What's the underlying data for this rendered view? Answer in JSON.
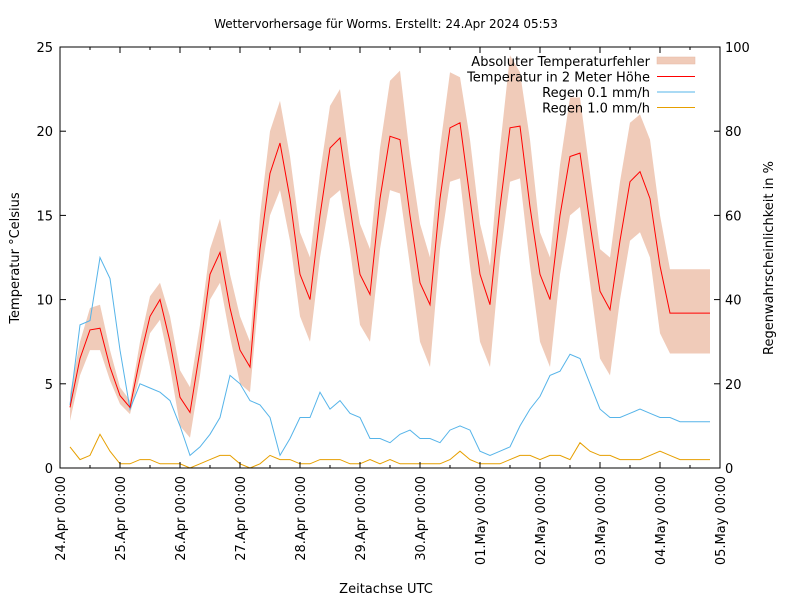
{
  "chart_data": {
    "type": "line",
    "title": "Wettervorhersage für Worms. Erstellt: 24.Apr 2024 05:53",
    "xlabel": "Zeitachse UTC",
    "ylabel": "Temperatur °Celsius",
    "y2label": "Regenwahrscheinlichkeit in %",
    "ylim": [
      0,
      25
    ],
    "y2lim": [
      0,
      100
    ],
    "yticks": [
      "0",
      "5",
      "10",
      "15",
      "20",
      "25"
    ],
    "y2ticks": [
      "0",
      "20",
      "40",
      "60",
      "80",
      "100"
    ],
    "xticks": [
      "24.Apr 00:00",
      "25.Apr 00:00",
      "26.Apr 00:00",
      "27.Apr 00:00",
      "28.Apr 00:00",
      "29.Apr 00:00",
      "30.Apr 00:00",
      "01.May 00:00",
      "02.May 00:00",
      "03.May 00:00",
      "04.May 00:00",
      "05.May 00:00"
    ],
    "xlim_days": [
      0,
      11
    ],
    "grid": false,
    "legend_position": "top-right",
    "legend": [
      {
        "label": "Absoluter Temperaturfehler",
        "kind": "band",
        "color": "#f0cbb9"
      },
      {
        "label": "Temperatur in 2 Meter Höhe",
        "kind": "line",
        "color": "#ff0000"
      },
      {
        "label": "Regen 0.1 mm/h",
        "kind": "line",
        "color": "#56b4e9"
      },
      {
        "label": "Regen 1.0 mm/h",
        "kind": "line",
        "color": "#e69f00"
      }
    ],
    "x_hours_from_start": [
      4,
      8,
      12,
      16,
      20,
      24,
      28,
      32,
      36,
      40,
      44,
      48,
      52,
      56,
      60,
      64,
      68,
      72,
      76,
      80,
      84,
      88,
      92,
      96,
      100,
      104,
      108,
      112,
      116,
      120,
      124,
      128,
      132,
      136,
      140,
      144,
      148,
      152,
      156,
      160,
      164,
      168,
      172,
      176,
      180,
      184,
      188,
      192,
      196,
      200,
      204,
      208,
      212,
      216,
      220,
      224,
      228,
      232,
      236,
      240,
      244,
      248,
      252,
      256,
      260
    ],
    "series": [
      {
        "name": "Temperatur in 2 Meter Höhe",
        "unit": "°C",
        "values": [
          3.6,
          6.5,
          8.2,
          8.3,
          6.0,
          4.3,
          3.6,
          6.5,
          9.0,
          10.0,
          7.5,
          4.2,
          3.3,
          7.0,
          11.5,
          12.8,
          9.5,
          7.0,
          6.0,
          13.0,
          17.5,
          19.3,
          16.0,
          11.5,
          10.0,
          15.0,
          19.0,
          19.6,
          15.5,
          11.5,
          10.3,
          16.0,
          19.7,
          19.5,
          15.0,
          11.0,
          9.7,
          16.0,
          20.2,
          20.5,
          16.0,
          11.5,
          9.7,
          15.5,
          20.2,
          20.3,
          15.5,
          11.5,
          10.0,
          15.0,
          18.5,
          18.7,
          14.5,
          10.5,
          9.4,
          13.5,
          17.0,
          17.6,
          16.0,
          12.0,
          9.2,
          9.2,
          9.2,
          9.2,
          9.2
        ]
      },
      {
        "name": "Absoluter Temperaturfehler (untere Grenze)",
        "unit": "°C",
        "values": [
          2.8,
          5.5,
          7.0,
          7.0,
          5.2,
          3.8,
          3.2,
          5.5,
          8.0,
          8.8,
          6.0,
          2.5,
          1.8,
          5.5,
          10.0,
          11.0,
          7.8,
          5.0,
          4.5,
          11.0,
          15.0,
          16.5,
          13.5,
          9.0,
          7.5,
          12.5,
          16.0,
          16.5,
          13.0,
          8.5,
          7.5,
          13.0,
          16.5,
          16.3,
          12.0,
          7.5,
          6.0,
          13.0,
          17.0,
          17.2,
          12.0,
          7.5,
          6.0,
          12.5,
          17.0,
          17.2,
          12.0,
          7.5,
          6.0,
          11.5,
          15.0,
          15.5,
          11.0,
          6.5,
          5.5,
          10.0,
          13.5,
          14.0,
          12.5,
          8.0,
          6.8,
          6.8,
          6.8,
          6.8,
          6.8
        ]
      },
      {
        "name": "Absoluter Temperaturfehler (obere Grenze)",
        "unit": "°C",
        "values": [
          4.4,
          7.5,
          9.5,
          9.7,
          7.0,
          4.8,
          4.0,
          7.5,
          10.2,
          11.0,
          9.0,
          5.8,
          4.8,
          8.5,
          13.0,
          14.8,
          11.5,
          9.0,
          7.5,
          15.0,
          20.0,
          21.8,
          18.5,
          14.0,
          12.5,
          17.5,
          21.5,
          22.5,
          18.0,
          14.5,
          13.0,
          19.0,
          23.0,
          23.6,
          18.5,
          14.5,
          12.5,
          19.0,
          23.5,
          23.2,
          19.5,
          14.5,
          12.0,
          19.0,
          24.5,
          23.5,
          19.5,
          14.0,
          12.5,
          18.0,
          22.0,
          22.0,
          17.5,
          13.0,
          12.5,
          17.0,
          20.5,
          21.0,
          19.5,
          15.0,
          11.8,
          11.8,
          11.8,
          11.8,
          11.8
        ]
      },
      {
        "name": "Regen 0.1 mm/h",
        "unit": "%",
        "axis": "y2",
        "values": [
          15,
          34,
          35,
          50,
          45,
          28,
          14,
          20,
          19,
          18,
          16,
          10,
          3,
          5,
          8,
          12,
          22,
          20,
          16,
          15,
          12,
          3,
          7,
          12,
          12,
          18,
          14,
          16,
          13,
          12,
          7,
          7,
          6,
          8,
          9,
          7,
          7,
          6,
          9,
          10,
          9,
          4,
          3,
          4,
          5,
          10,
          14,
          17,
          22,
          23,
          27,
          26,
          20,
          14,
          12,
          12,
          13,
          14,
          13,
          12,
          12,
          11,
          11,
          11,
          11
        ]
      },
      {
        "name": "Regen 1.0 mm/h",
        "unit": "%",
        "axis": "y2",
        "values": [
          5,
          2,
          3,
          8,
          4,
          1,
          1,
          2,
          2,
          1,
          1,
          1,
          0,
          1,
          2,
          3,
          3,
          1,
          0,
          1,
          3,
          2,
          2,
          1,
          1,
          2,
          2,
          2,
          1,
          1,
          2,
          1,
          2,
          1,
          1,
          1,
          1,
          1,
          2,
          4,
          2,
          1,
          1,
          1,
          2,
          3,
          3,
          2,
          3,
          3,
          2,
          6,
          4,
          3,
          3,
          2,
          2,
          2,
          3,
          4,
          3,
          2,
          2,
          2,
          2
        ]
      }
    ]
  }
}
